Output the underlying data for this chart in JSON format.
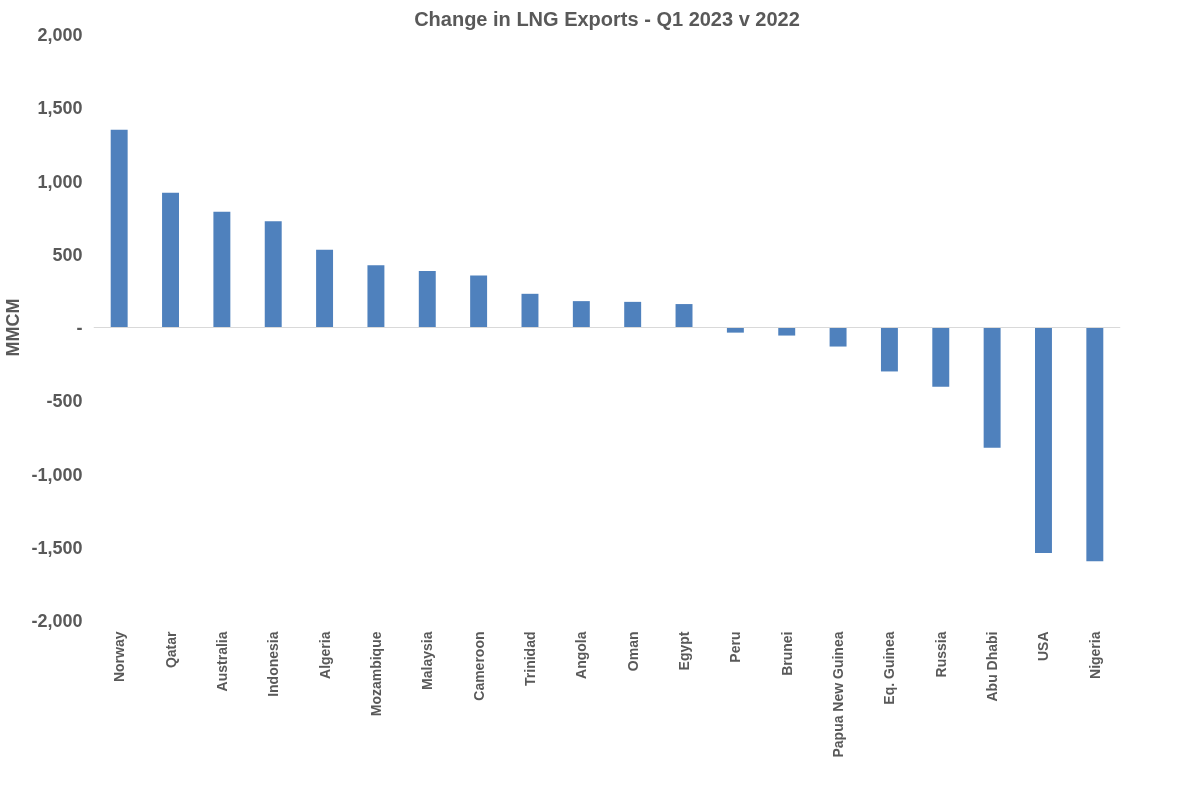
{
  "chart_data": {
    "type": "bar",
    "title": "Change in LNG Exports - Q1 2023 v 2022",
    "ylabel": "MMCM",
    "categories": [
      "Norway",
      "Qatar",
      "Australia",
      "Indonesia",
      "Algeria",
      "Mozambique",
      "Malaysia",
      "Cameroon",
      "Trinidad",
      "Angola",
      "Oman",
      "Egypt",
      "Peru",
      "Brunei",
      "Papua New Guinea",
      "Eq. Guinea",
      "Russia",
      "Abu Dhabi",
      "USA",
      "Nigeria"
    ],
    "values": [
      1350,
      920,
      790,
      725,
      530,
      425,
      385,
      355,
      230,
      180,
      175,
      160,
      -35,
      -55,
      -130,
      -300,
      -405,
      -820,
      -1540,
      -1595
    ],
    "color": "#4f81bd",
    "ylim": [
      -2000,
      2000
    ],
    "yticks": [
      {
        "value": -2000,
        "label": "-2,000"
      },
      {
        "value": -1500,
        "label": "-1,500"
      },
      {
        "value": -1000,
        "label": "-1,000"
      },
      -500,
      {
        "value": 0,
        "label": "-"
      },
      500,
      {
        "value": 1000,
        "label": "1,000"
      },
      {
        "value": 1500,
        "label": "1,500"
      },
      {
        "value": 2000,
        "label": "2,000"
      }
    ]
  }
}
